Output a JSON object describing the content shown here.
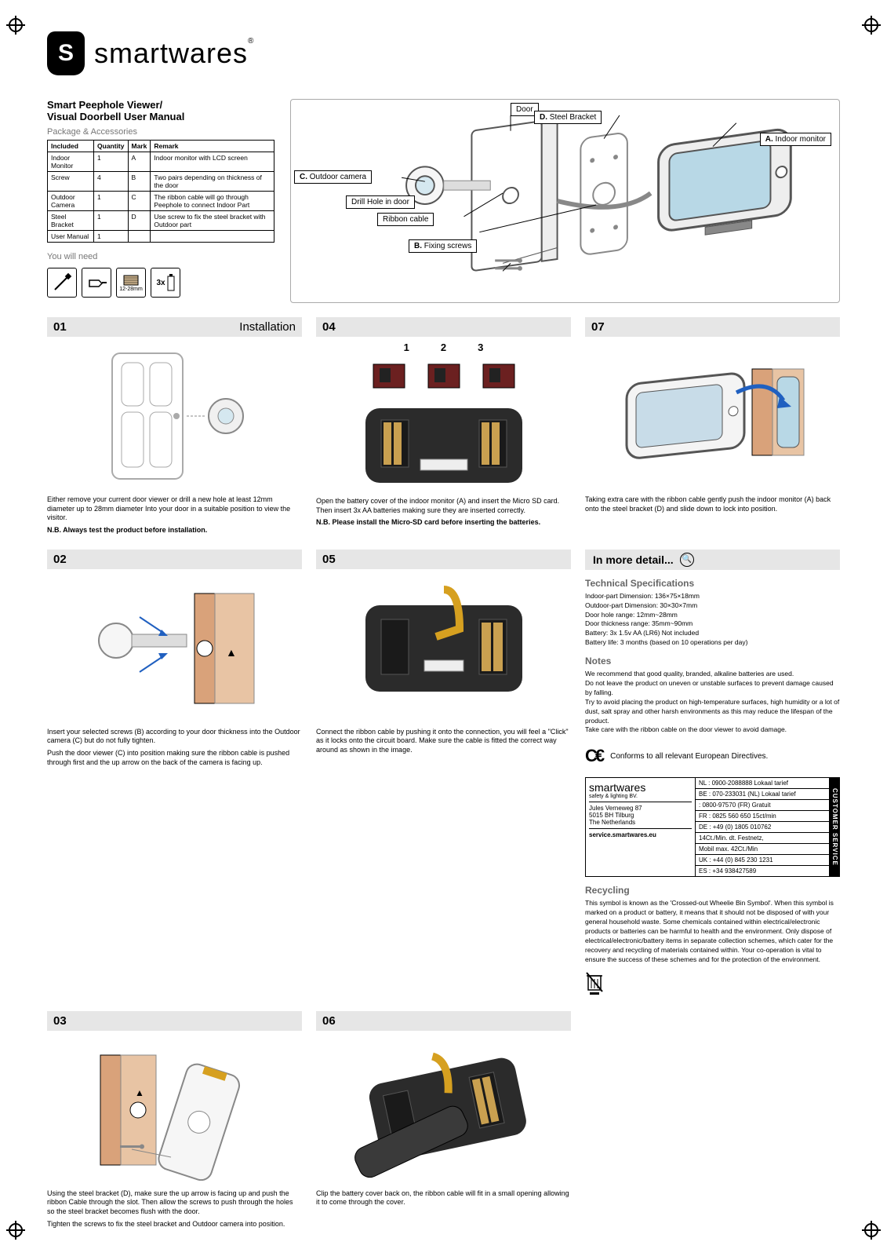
{
  "brand": "smartwares",
  "logo_letter": "S",
  "product_title_1": "Smart Peephole Viewer/",
  "product_title_2": "Visual Doorbell User Manual",
  "package_heading": "Package & Accessories",
  "pkg_table": {
    "headers": [
      "Included",
      "Quantity",
      "Mark",
      "Remark"
    ],
    "rows": [
      [
        "Indoor Monitor",
        "1",
        "A",
        "Indoor monitor with LCD screen"
      ],
      [
        "Screw",
        "4",
        "B",
        "Two pairs depending on thickness of the door"
      ],
      [
        "Outdoor Camera",
        "1",
        "C",
        "The ribbon cable will go through Peephole to connect Indoor Part"
      ],
      [
        "Steel Bracket",
        "1",
        "D",
        "Use screw to fix the steel bracket with Outdoor part"
      ],
      [
        "User Manual",
        "1",
        "",
        ""
      ]
    ]
  },
  "need_heading": "You will need",
  "need_items": [
    "",
    "",
    "12-28mm",
    "3x"
  ],
  "callouts": {
    "door": "Door",
    "d": "D. Steel Bracket",
    "a": "A. Indoor monitor",
    "c": "C. Outdoor camera",
    "drill": "Drill Hole in door",
    "ribbon": "Ribbon cable",
    "b": "B. Fixing screws"
  },
  "installation_label": "Installation",
  "in_more_detail": "In more detail...",
  "steps": {
    "01": {
      "num": "01",
      "text": "Either remove your current door viewer or drill a new hole at least 12mm diameter up to 28mm diameter Into your door in a suitable position to view the visitor.",
      "nb": "N.B. Always test the product before installation."
    },
    "02": {
      "num": "02",
      "text1": "Insert your selected screws (B) according to your door thickness into the Outdoor camera (C) but do not fully tighten.",
      "text2": "Push the door viewer (C) into position making sure the ribbon cable is pushed through first and the up arrow on the back of the camera is facing up."
    },
    "03": {
      "num": "03",
      "text1": "Using the steel bracket (D), make sure the up arrow is facing up and push the ribbon Cable through the slot. Then allow the screws to push through the holes so the steel bracket becomes flush with the door.",
      "text2": "Tighten the screws to fix the steel bracket and Outdoor camera into position."
    },
    "04": {
      "num": "04",
      "labels123": [
        "1",
        "2",
        "3"
      ],
      "text": "Open the battery cover of the indoor monitor (A) and insert the Micro SD card. Then insert 3x AA batteries making sure they are inserted correctly.",
      "nb": "N.B. Please install the Micro-SD card before inserting the batteries."
    },
    "05": {
      "num": "05",
      "text": "Connect the ribbon cable by pushing it onto the connection, you will feel a \"Click\" as it locks onto the circuit board. Make sure the cable is fitted the correct way around as shown in the image."
    },
    "06": {
      "num": "06",
      "text": "Clip the battery cover back on, the ribbon cable will fit in a small opening allowing it to come through the cover."
    },
    "07": {
      "num": "07",
      "text": "Taking extra care with the ribbon cable gently push the indoor monitor (A) back onto the steel bracket (D) and slide down to lock into position."
    }
  },
  "tech": {
    "heading": "Technical Specifications",
    "lines": [
      "Indoor-part Dimension: 136×75×18mm",
      "Outdoor-part Dimension: 30×30×7mm",
      "Door hole range: 12mm~28mm",
      "Door thickness range: 35mm~90mm",
      "Battery: 3x 1.5v AA (LR6) Not included",
      "Battery life: 3 months (based on 10 operations per day)"
    ]
  },
  "notes": {
    "heading": "Notes",
    "lines": [
      "We recommend that good quality, branded, alkaline batteries are used.",
      "Do not leave the product on uneven or unstable surfaces to prevent damage caused by falling.",
      "Try to avoid placing the product on high-temperature surfaces, high humidity or a lot of dust, salt spray and other harsh environments as this may reduce the lifespan of the product.",
      "Take care with the ribbon cable on the door viewer to avoid damage."
    ]
  },
  "ce_text": "Conforms to all relevant European Directives.",
  "contact": {
    "brand": "smartwares",
    "sub": "safety & lighting BV.",
    "addr1": "Jules Verneweg 87",
    "addr2": "5015 BH Tilburg",
    "addr3": "The Netherlands",
    "site": "service.smartwares.eu",
    "lines": [
      "NL : 0900-2088888     Lokaal tarief",
      "BE : 070-233031 (NL) Lokaal tarief",
      "    : 0800-97570 (FR) Gratuit",
      "FR : 0825 560 650     15ct/min",
      "DE : +49 (0) 1805 010762",
      "       14Ct./Min. dt. Festnetz,",
      "       Mobil max. 42Ct./Min",
      "UK : +44 (0) 845 230 1231",
      "ES : +34 938427589"
    ],
    "cs_label": "CUSTOMER SERVICE"
  },
  "recycling": {
    "heading": "Recycling",
    "text": "This symbol is known as the 'Crossed-out Wheelie Bin Symbol'. When this symbol is marked on a product or battery, it means that it should not be disposed of with your general household waste. Some chemicals contained within electrical/electronic products or batteries can be harmful to health and the environment. Only dispose of electrical/electronic/battery items in separate collection schemes, which cater for the recovery and recycling of materials contained within. Your co-operation is vital to ensure the success of these schemes and for the protection of the environment."
  },
  "colors": {
    "bracket": "#d9a27a",
    "gray_bar": "#e6e6e6",
    "monitor": "#2b2b2b",
    "text_gray": "#777777"
  }
}
